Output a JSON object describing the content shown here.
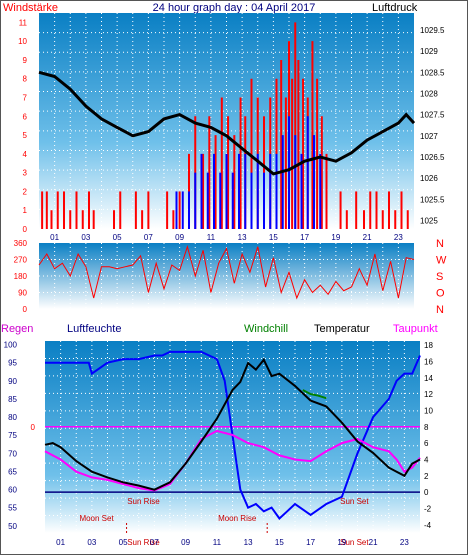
{
  "colors": {
    "panel_top": "#0a7fc4",
    "panel_mid": "#6fc0ea",
    "panel_bottom": "#ffffff",
    "grid": "#ffffff",
    "red_series": "#ff0000",
    "blue_series": "#0000ff",
    "black_series": "#000000",
    "magenta_series": "#ff00ff",
    "green_series": "#008000",
    "navy_text": "#000080",
    "dark_red_text": "#cc0000"
  },
  "header": {
    "left_label": "Windstärke",
    "center_title": "24 hour graph day : 04 April 2017",
    "right_label": "Luftdruck"
  },
  "legend_bottom": {
    "regen": "Regen",
    "luftfeuchte": "Luftfeuchte",
    "windchill": "Windchill",
    "temperatur": "Temperatur",
    "taupunkt": "Taupunkt"
  },
  "x_ticks": [
    "01",
    "03",
    "05",
    "07",
    "09",
    "11",
    "13",
    "15",
    "17",
    "19",
    "21",
    "23"
  ],
  "chart_data": [
    {
      "type": "bar",
      "name": "wind_pressure",
      "left_ticks": [
        "0",
        "1",
        "2",
        "3",
        "4",
        "5",
        "6",
        "7",
        "8",
        "9",
        "10",
        "11"
      ],
      "right_ticks": [
        "1029.5",
        "1029",
        "1028.5",
        "1028",
        "1027.5",
        "1027",
        "1026.5",
        "1026",
        "1025.5",
        "1025"
      ],
      "xlim": [
        0,
        24
      ],
      "ylim_left": [
        0,
        11.5
      ],
      "ylim_right": [
        1024.8,
        1029.9
      ],
      "series": [
        {
          "name": "Windstärke",
          "color": "#ff0000",
          "x": [
            0.2,
            0.5,
            0.8,
            1.2,
            1.6,
            2.0,
            2.4,
            2.8,
            3.2,
            3.5,
            4.8,
            5.2,
            6.2,
            6.6,
            7.0,
            8.2,
            8.6,
            9.0,
            9.6,
            10.0,
            10.5,
            10.9,
            11.3,
            11.7,
            12.1,
            12.5,
            12.9,
            13.2,
            13.6,
            14.0,
            14.4,
            14.8,
            15.2,
            15.5,
            15.8,
            16.0,
            16.2,
            16.4,
            16.6,
            16.9,
            17.2,
            17.5,
            17.8,
            18.1,
            18.4,
            19.3,
            19.7,
            20.3,
            20.8,
            21.2,
            21.6,
            22.0,
            22.4,
            22.8,
            23.2,
            23.6
          ],
          "values": [
            2,
            2,
            1,
            2,
            2,
            1,
            2,
            1,
            2,
            1,
            1,
            2,
            2,
            1,
            2,
            2,
            1,
            2,
            4,
            6,
            4,
            6,
            5,
            7,
            6,
            5,
            7,
            6,
            8,
            7,
            6,
            7,
            8,
            9,
            7,
            10,
            8,
            11,
            9,
            8,
            7,
            10,
            8,
            6,
            4,
            2,
            1,
            2,
            1,
            2,
            2,
            1,
            2,
            1,
            2,
            1
          ]
        },
        {
          "name": "Windstärke (Mittel)",
          "color": "#0000ff",
          "x": [
            8.8,
            9.2,
            9.6,
            10.0,
            10.4,
            10.8,
            11.2,
            11.6,
            12.0,
            12.4,
            12.8,
            13.2,
            13.6,
            14.0,
            14.4,
            14.8,
            15.2,
            15.6,
            16.0,
            16.4,
            16.8,
            17.2,
            17.6,
            18.0
          ],
          "values": [
            2,
            2,
            2,
            3,
            4,
            3,
            4,
            3,
            4,
            3,
            4,
            4,
            3,
            4,
            3,
            4,
            4,
            5,
            6,
            5,
            4,
            6,
            5,
            4
          ]
        },
        {
          "name": "Luftdruck",
          "color": "#000000",
          "axis": "right",
          "x": [
            0,
            1,
            2,
            3,
            4,
            5,
            6,
            7,
            8,
            9,
            10,
            11,
            12,
            13,
            14,
            15,
            16,
            17,
            18,
            19,
            20,
            21,
            22,
            23,
            23.5,
            24
          ],
          "values": [
            1028.5,
            1028.4,
            1028.1,
            1027.7,
            1027.4,
            1027.2,
            1027.0,
            1027.1,
            1027.4,
            1027.5,
            1027.3,
            1027.2,
            1027.0,
            1026.7,
            1026.4,
            1026.1,
            1026.2,
            1026.4,
            1026.5,
            1026.4,
            1026.6,
            1026.9,
            1027.1,
            1027.3,
            1027.5,
            1027.3
          ]
        }
      ]
    },
    {
      "type": "line",
      "name": "wind_direction",
      "left_ticks": [
        "0",
        "90",
        "180",
        "270",
        "360"
      ],
      "right_ticks": [
        "N",
        "W",
        "S",
        "O",
        "N"
      ],
      "xlim": [
        0,
        24
      ],
      "ylim": [
        0,
        360
      ],
      "series": [
        {
          "name": "Windrichtung",
          "color": "#ff0000",
          "x": [
            0,
            0.5,
            1.0,
            1.5,
            2.0,
            2.5,
            3.0,
            3.5,
            4.0,
            4.5,
            5.0,
            5.5,
            6.0,
            6.5,
            7.0,
            7.5,
            8.0,
            8.5,
            9.0,
            9.5,
            10.0,
            10.5,
            11.0,
            11.5,
            12.0,
            12.5,
            13.0,
            13.5,
            14.0,
            14.5,
            15.0,
            15.5,
            16.0,
            16.5,
            17.0,
            17.5,
            18.0,
            18.5,
            19.0,
            19.5,
            20.0,
            20.5,
            21.0,
            21.5,
            22.0,
            22.5,
            23.0,
            23.5,
            24.0
          ],
          "values": [
            240,
            300,
            220,
            250,
            180,
            300,
            230,
            60,
            230,
            230,
            220,
            230,
            240,
            290,
            90,
            250,
            110,
            240,
            210,
            340,
            180,
            320,
            90,
            250,
            330,
            140,
            300,
            200,
            340,
            120,
            280,
            90,
            200,
            60,
            160,
            90,
            130,
            80,
            150,
            100,
            120,
            220,
            130,
            300,
            100,
            260,
            60,
            280,
            270
          ]
        }
      ]
    },
    {
      "type": "line",
      "name": "humidity_temperature",
      "left_ticks": [
        "100",
        "95",
        "90",
        "85",
        "80",
        "75",
        "70",
        "65",
        "60",
        "55",
        "50"
      ],
      "right_ticks": [
        "18",
        "16",
        "14",
        "12",
        "10",
        "8",
        "6",
        "4",
        "2",
        "0",
        "-2",
        "-4"
      ],
      "xlim": [
        0,
        24
      ],
      "ylim_left": [
        48,
        101
      ],
      "ylim_right": [
        -5,
        18.5
      ],
      "series": [
        {
          "name": "Luftfeuchte",
          "color": "#0000ff",
          "axis": "left",
          "x": [
            0,
            1,
            2,
            2.8,
            3.0,
            4,
            5,
            6,
            7,
            7.5,
            8,
            9,
            9.5,
            10,
            11,
            11.5,
            12,
            12.5,
            13,
            13.5,
            14,
            14.5,
            15,
            15.5,
            16,
            17,
            18,
            19,
            20,
            21,
            22,
            22.5,
            23,
            23.5,
            24
          ],
          "values": [
            95,
            95,
            95,
            95,
            92,
            95,
            96,
            96,
            97,
            97,
            98,
            98,
            98,
            98,
            96,
            90,
            75,
            60,
            55,
            56,
            54,
            55,
            52,
            54,
            56,
            53,
            56,
            58,
            70,
            80,
            85,
            90,
            92,
            92,
            97
          ]
        },
        {
          "name": "Temperatur",
          "color": "#000000",
          "axis": "right",
          "x": [
            0,
            0.5,
            1,
            2,
            3,
            4,
            5,
            6,
            7,
            8,
            9,
            10,
            11,
            12,
            12.5,
            13,
            13.5,
            14,
            14.5,
            15,
            16,
            17,
            18,
            19,
            20,
            21,
            22,
            22.5,
            23,
            23.5,
            24
          ],
          "values": [
            5.8,
            6.0,
            5.5,
            3.8,
            2.5,
            1.8,
            1.2,
            0.8,
            0.3,
            1.2,
            3.5,
            6.2,
            9.0,
            12.5,
            13.5,
            15.8,
            15.0,
            16.2,
            14.2,
            14.5,
            13.0,
            11.2,
            10.5,
            8.5,
            6.2,
            4.8,
            3.0,
            2.5,
            2.0,
            3.5,
            4.0
          ]
        },
        {
          "name": "Taupunkt",
          "color": "#ff00ff",
          "axis": "right",
          "x": [
            0,
            1,
            2,
            3,
            4,
            5,
            6,
            7,
            8,
            9,
            10,
            11,
            12,
            13,
            14,
            15,
            16,
            17,
            18,
            19,
            20,
            21,
            22,
            22.5,
            23,
            23.5,
            24
          ],
          "values": [
            5.0,
            4.0,
            2.5,
            1.8,
            1.5,
            1.0,
            0.5,
            0.2,
            1.0,
            3.5,
            6.5,
            7.5,
            7.0,
            6.0,
            5.5,
            4.5,
            4.0,
            3.8,
            5.0,
            6.0,
            6.5,
            5.5,
            5.0,
            4.0,
            2.5,
            3.0,
            4.2
          ]
        },
        {
          "name": "Windchill",
          "color": "#008000",
          "axis": "right",
          "x": [
            16.5,
            17,
            17.5,
            18
          ],
          "values": [
            12.5,
            12.0,
            11.8,
            11.5
          ]
        }
      ],
      "reference_lines": [
        {
          "axis": "right",
          "value": 8,
          "color": "#ff00ff",
          "label": "0"
        },
        {
          "axis": "right",
          "value": 0,
          "color": "#000080",
          "label": ""
        }
      ],
      "annotations": [
        {
          "text": "Sun Rise",
          "x": 6.3
        },
        {
          "text": "Sun Set",
          "x": 19.8
        },
        {
          "text": "Moon Set",
          "x": 3.3
        },
        {
          "text": "Moon Rise",
          "x": 12.3
        },
        {
          "text": "Sun Rise",
          "x": 6.3
        },
        {
          "text": "Sun Set",
          "x": 19.8
        }
      ]
    }
  ]
}
